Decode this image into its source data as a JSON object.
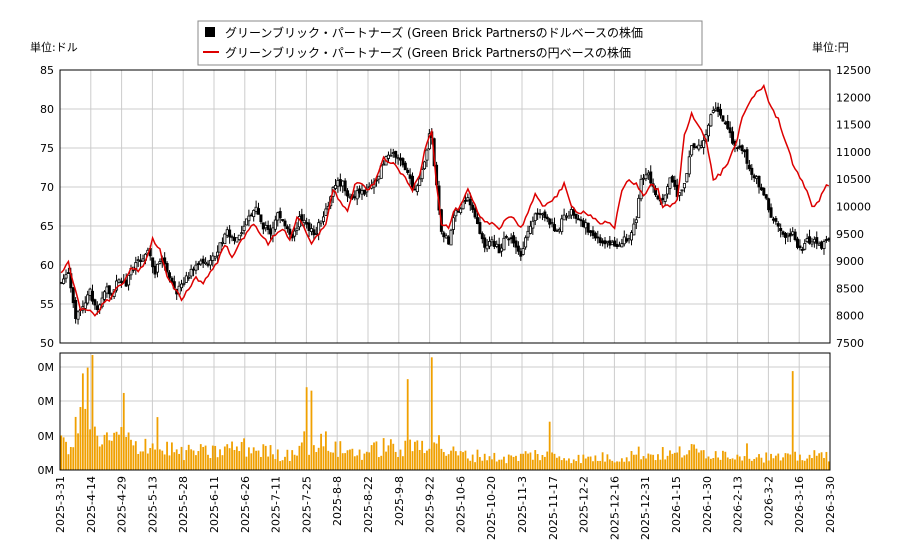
{
  "chart_data": {
    "type": "candlestick+line+bar",
    "legend": {
      "series_usd": "グリーンブリック・パートナーズ (Green Brick Partnersのドルベースの株価",
      "series_jpy": "グリーンブリック・パートナーズ (Green Brick Partnersの円ベースの株価"
    },
    "left_unit_label": "単位:ドル",
    "right_unit_label": "単位:円",
    "left_axis": {
      "min": 50,
      "max": 85,
      "ticks": [
        50,
        55,
        60,
        65,
        70,
        75,
        80,
        85
      ]
    },
    "right_axis": {
      "min": 7500,
      "max": 12500,
      "ticks": [
        7500,
        8000,
        8500,
        9000,
        9500,
        10000,
        10500,
        11000,
        11500,
        12000,
        12500
      ]
    },
    "volume_axis": {
      "tick_labels": [
        "0M",
        "0M",
        "0M",
        "0M"
      ]
    },
    "x_labels": [
      "2025-3-31",
      "2025-4-14",
      "2025-4-29",
      "2025-5-13",
      "2025-5-28",
      "2025-6-11",
      "2025-6-26",
      "2025-7-11",
      "2025-7-25",
      "2025-8-8",
      "2025-8-22",
      "2025-9-8",
      "2025-9-22",
      "2025-10-6",
      "2025-10-20",
      "2025-11-3",
      "2025-11-17",
      "2025-12-2",
      "2025-12-16",
      "2025-12-31",
      "2026-1-15",
      "2026-1-30",
      "2026-2-13",
      "2026-3-2",
      "2026-3-16",
      "2026-3-30"
    ],
    "usd_close_keypoints": [
      [
        0,
        57.5
      ],
      [
        3,
        59
      ],
      [
        6,
        53
      ],
      [
        9,
        55
      ],
      [
        12,
        56.5
      ],
      [
        15,
        54
      ],
      [
        18,
        57
      ],
      [
        21,
        56.5
      ],
      [
        24,
        58
      ],
      [
        27,
        57.5
      ],
      [
        30,
        60
      ],
      [
        33,
        60.5
      ],
      [
        36,
        62
      ],
      [
        39,
        59
      ],
      [
        42,
        61
      ],
      [
        45,
        58.5
      ],
      [
        48,
        56.5
      ],
      [
        51,
        57.5
      ],
      [
        54,
        59.5
      ],
      [
        57,
        60.5
      ],
      [
        60,
        60
      ],
      [
        63,
        61
      ],
      [
        66,
        62.5
      ],
      [
        69,
        64.5
      ],
      [
        72,
        63
      ],
      [
        75,
        64.5
      ],
      [
        78,
        66
      ],
      [
        81,
        67
      ],
      [
        84,
        65
      ],
      [
        87,
        64
      ],
      [
        90,
        66.5
      ],
      [
        93,
        65
      ],
      [
        96,
        63.5
      ],
      [
        99,
        66
      ],
      [
        102,
        65
      ],
      [
        105,
        64
      ],
      [
        108,
        65.5
      ],
      [
        111,
        67.5
      ],
      [
        114,
        70.5
      ],
      [
        117,
        70.5
      ],
      [
        120,
        68.5
      ],
      [
        123,
        69.5
      ],
      [
        126,
        69.5
      ],
      [
        129,
        70
      ],
      [
        132,
        71.5
      ],
      [
        135,
        74
      ],
      [
        138,
        74
      ],
      [
        141,
        73.5
      ],
      [
        144,
        72
      ],
      [
        147,
        69.5
      ],
      [
        150,
        72
      ],
      [
        153,
        76.5
      ],
      [
        154,
        76
      ],
      [
        156,
        70
      ],
      [
        158,
        64
      ],
      [
        161,
        63
      ],
      [
        163,
        66.5
      ],
      [
        166,
        67.5
      ],
      [
        169,
        69
      ],
      [
        172,
        66
      ],
      [
        174,
        64
      ],
      [
        176,
        62.5
      ],
      [
        179,
        63
      ],
      [
        182,
        62
      ],
      [
        185,
        63.5
      ],
      [
        188,
        63
      ],
      [
        191,
        61.5
      ],
      [
        194,
        64
      ],
      [
        197,
        66.5
      ],
      [
        200,
        66.5
      ],
      [
        203,
        65.5
      ],
      [
        206,
        64.5
      ],
      [
        209,
        66
      ],
      [
        212,
        67
      ],
      [
        215,
        66
      ],
      [
        218,
        65
      ],
      [
        221,
        63.5
      ],
      [
        224,
        63
      ],
      [
        227,
        63
      ],
      [
        230,
        62.5
      ],
      [
        233,
        63
      ],
      [
        236,
        63.5
      ],
      [
        239,
        66
      ],
      [
        241,
        71
      ],
      [
        244,
        71.5
      ],
      [
        247,
        69
      ],
      [
        250,
        68
      ],
      [
        253,
        71
      ],
      [
        256,
        69
      ],
      [
        259,
        70.5
      ],
      [
        262,
        75.5
      ],
      [
        265,
        75
      ],
      [
        268,
        77
      ],
      [
        271,
        80
      ],
      [
        274,
        79.5
      ],
      [
        277,
        77.5
      ],
      [
        280,
        75
      ],
      [
        283,
        75
      ],
      [
        286,
        72.5
      ],
      [
        289,
        71
      ],
      [
        292,
        69
      ],
      [
        295,
        66.5
      ],
      [
        298,
        65
      ],
      [
        301,
        63.5
      ],
      [
        304,
        64
      ],
      [
        307,
        62
      ],
      [
        310,
        63
      ],
      [
        313,
        63.5
      ],
      [
        316,
        62
      ],
      [
        318,
        63.5
      ]
    ],
    "jpy_close_keypoints": [
      [
        0,
        8800
      ],
      [
        3,
        9000
      ],
      [
        5,
        8600
      ],
      [
        8,
        8100
      ],
      [
        11,
        8100
      ],
      [
        14,
        8000
      ],
      [
        17,
        8200
      ],
      [
        20,
        8300
      ],
      [
        23,
        8500
      ],
      [
        26,
        8600
      ],
      [
        29,
        8900
      ],
      [
        32,
        8800
      ],
      [
        35,
        9000
      ],
      [
        38,
        9400
      ],
      [
        41,
        9200
      ],
      [
        44,
        8700
      ],
      [
        47,
        8500
      ],
      [
        50,
        8300
      ],
      [
        53,
        8500
      ],
      [
        56,
        8700
      ],
      [
        59,
        8600
      ],
      [
        62,
        8800
      ],
      [
        65,
        9000
      ],
      [
        68,
        9300
      ],
      [
        71,
        9100
      ],
      [
        74,
        9300
      ],
      [
        77,
        9500
      ],
      [
        80,
        9700
      ],
      [
        83,
        9500
      ],
      [
        86,
        9300
      ],
      [
        89,
        9500
      ],
      [
        92,
        9600
      ],
      [
        95,
        9400
      ],
      [
        98,
        9800
      ],
      [
        101,
        9600
      ],
      [
        104,
        9300
      ],
      [
        107,
        9500
      ],
      [
        110,
        9700
      ],
      [
        113,
        10300
      ],
      [
        116,
        10100
      ],
      [
        119,
        9900
      ],
      [
        122,
        10400
      ],
      [
        125,
        10400
      ],
      [
        128,
        10300
      ],
      [
        131,
        10500
      ],
      [
        134,
        10900
      ],
      [
        137,
        10800
      ],
      [
        140,
        10700
      ],
      [
        143,
        10500
      ],
      [
        146,
        10300
      ],
      [
        149,
        10600
      ],
      [
        152,
        11200
      ],
      [
        154,
        11400
      ],
      [
        156,
        10400
      ],
      [
        158,
        9700
      ],
      [
        161,
        9600
      ],
      [
        163,
        9900
      ],
      [
        166,
        10000
      ],
      [
        169,
        10300
      ],
      [
        172,
        10000
      ],
      [
        174,
        9800
      ],
      [
        176,
        9700
      ],
      [
        179,
        9700
      ],
      [
        182,
        9600
      ],
      [
        185,
        9800
      ],
      [
        188,
        9800
      ],
      [
        191,
        9600
      ],
      [
        194,
        9900
      ],
      [
        197,
        10200
      ],
      [
        200,
        10000
      ],
      [
        203,
        10100
      ],
      [
        206,
        10200
      ],
      [
        209,
        10400
      ],
      [
        212,
        10000
      ],
      [
        215,
        9900
      ],
      [
        218,
        9900
      ],
      [
        221,
        9800
      ],
      [
        224,
        9700
      ],
      [
        227,
        9700
      ],
      [
        230,
        9600
      ],
      [
        233,
        10300
      ],
      [
        236,
        10500
      ],
      [
        239,
        10400
      ],
      [
        242,
        10200
      ],
      [
        245,
        10400
      ],
      [
        248,
        10300
      ],
      [
        250,
        10000
      ],
      [
        253,
        10000
      ],
      [
        256,
        10100
      ],
      [
        259,
        11300
      ],
      [
        262,
        11700
      ],
      [
        265,
        11500
      ],
      [
        268,
        11200
      ],
      [
        271,
        10500
      ],
      [
        274,
        10600
      ],
      [
        277,
        10800
      ],
      [
        280,
        11100
      ],
      [
        283,
        11600
      ],
      [
        286,
        11900
      ],
      [
        289,
        12100
      ],
      [
        292,
        12200
      ],
      [
        295,
        11800
      ],
      [
        298,
        11600
      ],
      [
        301,
        11200
      ],
      [
        304,
        10800
      ],
      [
        307,
        10500
      ],
      [
        310,
        10300
      ],
      [
        312,
        10000
      ],
      [
        315,
        10100
      ],
      [
        318,
        10400
      ]
    ],
    "volume_profile": [
      [
        0,
        2.2
      ],
      [
        5,
        2.5
      ],
      [
        8,
        4.7
      ],
      [
        10,
        6.0
      ],
      [
        12,
        3.3
      ],
      [
        15,
        2.6
      ],
      [
        20,
        2.4
      ],
      [
        25,
        3.1
      ],
      [
        28,
        2.4
      ],
      [
        32,
        2.0
      ],
      [
        36,
        2.5
      ],
      [
        40,
        1.7
      ],
      [
        45,
        1.9
      ],
      [
        50,
        1.4
      ],
      [
        55,
        1.7
      ],
      [
        60,
        1.5
      ],
      [
        65,
        1.6
      ],
      [
        70,
        1.9
      ],
      [
        75,
        2.0
      ],
      [
        80,
        1.8
      ],
      [
        85,
        1.7
      ],
      [
        90,
        1.3
      ],
      [
        95,
        1.4
      ],
      [
        100,
        2.5
      ],
      [
        105,
        2.1
      ],
      [
        110,
        2.4
      ],
      [
        115,
        1.8
      ],
      [
        120,
        1.6
      ],
      [
        125,
        1.5
      ],
      [
        130,
        1.7
      ],
      [
        135,
        2.2
      ],
      [
        140,
        1.6
      ],
      [
        145,
        1.9
      ],
      [
        150,
        2.4
      ],
      [
        155,
        2.8
      ],
      [
        160,
        1.6
      ],
      [
        165,
        1.4
      ],
      [
        170,
        1.2
      ],
      [
        175,
        1.3
      ],
      [
        180,
        1.1
      ],
      [
        185,
        1.0
      ],
      [
        190,
        1.1
      ],
      [
        195,
        1.4
      ],
      [
        200,
        1.3
      ],
      [
        205,
        1.2
      ],
      [
        210,
        1.1
      ],
      [
        215,
        1.0
      ],
      [
        220,
        1.0
      ],
      [
        225,
        1.1
      ],
      [
        230,
        1.0
      ],
      [
        235,
        1.2
      ],
      [
        240,
        1.5
      ],
      [
        245,
        1.3
      ],
      [
        250,
        1.4
      ],
      [
        255,
        1.3
      ],
      [
        260,
        1.8
      ],
      [
        265,
        1.5
      ],
      [
        270,
        1.6
      ],
      [
        275,
        1.4
      ],
      [
        280,
        1.3
      ],
      [
        285,
        1.6
      ],
      [
        290,
        1.2
      ],
      [
        295,
        1.1
      ],
      [
        300,
        1.0
      ],
      [
        305,
        1.1
      ],
      [
        310,
        1.2
      ],
      [
        315,
        1.2
      ],
      [
        319,
        1.3
      ]
    ],
    "volume_spikes": [
      [
        9,
        8.4
      ],
      [
        11,
        8.9
      ],
      [
        13,
        10.0
      ],
      [
        26,
        6.7
      ],
      [
        40,
        4.6
      ],
      [
        102,
        7.2
      ],
      [
        104,
        6.9
      ],
      [
        144,
        7.9
      ],
      [
        154,
        9.8
      ],
      [
        203,
        4.2
      ],
      [
        304,
        8.6
      ]
    ]
  }
}
